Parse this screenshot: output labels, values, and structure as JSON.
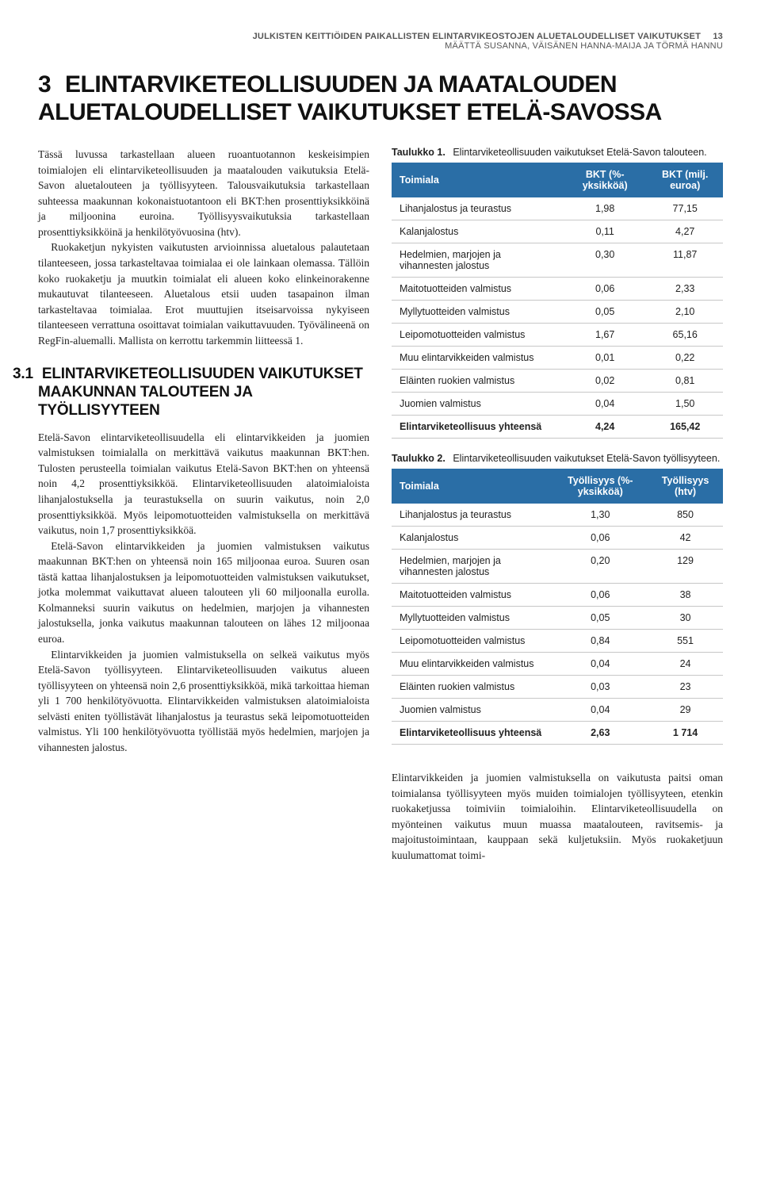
{
  "header": {
    "line1": "JULKISTEN KEITTIÖIDEN PAIKALLISTEN ELINTARVIKEOSTOJEN ALUETALOUDELLISET VAIKUTUKSET",
    "line2": "MÄÄTTÄ SUSANNA, VÄISÄNEN HANNA-MAIJA JA TÖRMÄ HANNU",
    "page": "13"
  },
  "chapter": {
    "num": "3",
    "title": "ELINTARVIKETEOLLISUUDEN JA MAATALOUDEN ALUETALOUDELLISET VAIKUTUKSET ETELÄ-SAVOSSA"
  },
  "left": {
    "p1": "Tässä luvussa tarkastellaan alueen ruoantuotannon keskeisimpien toimialojen eli elintarviketeollisuuden ja maatalouden vaikutuksia Etelä-Savon aluetalouteen ja työllisyyteen. Talousvaikutuksia tarkastellaan suhteessa maakunnan kokonaistuotantoon eli BKT:hen prosenttiyksikköinä ja miljoonina euroina. Työllisyysvaikutuksia tarkastellaan prosenttiyksikköinä ja henkilötyövuosina (htv).",
    "p2": "Ruokaketjun nykyisten vaikutusten arvioinnissa aluetalous palautetaan tilanteeseen, jossa tarkasteltavaa toimialaa ei ole lainkaan olemassa. Tällöin koko ruokaketju ja muutkin toimialat eli alueen koko elinkeinorakenne mukautuvat tilanteeseen. Aluetalous etsii uuden tasapainon ilman tarkasteltavaa toimialaa. Erot muuttujien itseisarvoissa nykyiseen tilanteeseen verrattuna osoittavat toimialan vaikuttavuuden. Työvälineenä on RegFin-aluemalli. Mallista on kerrottu tarkemmin liitteessä 1.",
    "section": {
      "num": "3.1",
      "title": "ELINTARVIKETEOLLISUUDEN VAIKUTUKSET MAAKUNNAN TALOUTEEN JA TYÖLLISYYTEEN"
    },
    "p3": "Etelä-Savon elintarviketeollisuudella eli elintarvikkeiden ja juomien valmistuksen toimialalla on merkittävä vaikutus maakunnan BKT:hen. Tulosten perusteella toimialan vaikutus Etelä-Savon BKT:hen on yhteensä noin 4,2 prosenttiyksikköä. Elintarviketeollisuuden alatoimialoista lihanjalostuksella ja teurastuksella on suurin vaikutus, noin 2,0 prosenttiyksikköä. Myös leipomotuotteiden valmistuksella on merkittävä vaikutus, noin 1,7 prosenttiyksikköä.",
    "p4": "Etelä-Savon elintarvikkeiden ja juomien valmistuksen vaikutus maakunnan BKT:hen on yhteensä noin 165 miljoonaa euroa. Suuren osan tästä kattaa lihanjalostuksen ja leipomotuotteiden valmistuksen vaikutukset, jotka molemmat vaikuttavat alueen talouteen yli 60 miljoonalla eurolla. Kolmanneksi suurin vaikutus on hedelmien, marjojen ja vihannesten jalostuksella, jonka vaikutus maakunnan talouteen on lähes 12 miljoonaa euroa.",
    "p5": "Elintarvikkeiden ja juomien valmistuksella on selkeä vaikutus myös Etelä-Savon työllisyyteen. Elintarviketeollisuuden vaikutus alueen työllisyyteen on yhteensä noin 2,6 prosenttiyksikköä, mikä tarkoittaa hieman yli 1 700 henkilötyövuotta. Elintarvikkeiden valmistuksen alatoimialoista selvästi eniten työllistävät lihanjalostus ja teurastus sekä leipomotuotteiden valmistus. Yli 100 henkilötyövuotta työllistää myös hedelmien, marjojen ja vihannesten jalostus."
  },
  "table1": {
    "caption_label": "Taulukko 1.",
    "caption_text": "Elintarviketeollisuuden vaikutukset Etelä-Savon talouteen.",
    "col0": "Toimiala",
    "col1": "BKT (%-yksikköä)",
    "col2": "BKT (milj. euroa)",
    "rows": [
      {
        "label": "Lihanjalostus ja teurastus",
        "v1": "1,98",
        "v2": "77,15"
      },
      {
        "label": "Kalanjalostus",
        "v1": "0,11",
        "v2": "4,27"
      },
      {
        "label": "Hedelmien, marjojen ja vihannesten jalostus",
        "v1": "0,30",
        "v2": "11,87"
      },
      {
        "label": "Maitotuotteiden valmistus",
        "v1": "0,06",
        "v2": "2,33"
      },
      {
        "label": "Myllytuotteiden valmistus",
        "v1": "0,05",
        "v2": "2,10"
      },
      {
        "label": "Leipomotuotteiden valmistus",
        "v1": "1,67",
        "v2": "65,16"
      },
      {
        "label": "Muu elintarvikkeiden valmistus",
        "v1": "0,01",
        "v2": "0,22"
      },
      {
        "label": "Eläinten ruokien valmistus",
        "v1": "0,02",
        "v2": "0,81"
      },
      {
        "label": "Juomien valmistus",
        "v1": "0,04",
        "v2": "1,50"
      }
    ],
    "total": {
      "label": "Elintarviketeollisuus yhteensä",
      "v1": "4,24",
      "v2": "165,42"
    }
  },
  "table2": {
    "caption_label": "Taulukko 2.",
    "caption_text": "Elintarviketeollisuuden vaikutukset Etelä-Savon työllisyyteen.",
    "col0": "Toimiala",
    "col1": "Työllisyys (%-yksikköä)",
    "col2": "Työllisyys (htv)",
    "rows": [
      {
        "label": "Lihanjalostus ja teurastus",
        "v1": "1,30",
        "v2": "850"
      },
      {
        "label": "Kalanjalostus",
        "v1": "0,06",
        "v2": "42"
      },
      {
        "label": "Hedelmien, marjojen ja vihannesten jalostus",
        "v1": "0,20",
        "v2": "129"
      },
      {
        "label": "Maitotuotteiden valmistus",
        "v1": "0,06",
        "v2": "38"
      },
      {
        "label": "Myllytuotteiden valmistus",
        "v1": "0,05",
        "v2": "30"
      },
      {
        "label": "Leipomotuotteiden valmistus",
        "v1": "0,84",
        "v2": "551"
      },
      {
        "label": "Muu elintarvikkeiden valmistus",
        "v1": "0,04",
        "v2": "24"
      },
      {
        "label": "Eläinten ruokien valmistus",
        "v1": "0,03",
        "v2": "23"
      },
      {
        "label": "Juomien valmistus",
        "v1": "0,04",
        "v2": "29"
      }
    ],
    "total": {
      "label": "Elintarviketeollisuus yhteensä",
      "v1": "2,63",
      "v2": "1 714"
    }
  },
  "right_para": "Elintarvikkeiden ja juomien valmistuksella on vaikutusta paitsi oman toimialansa työllisyyteen myös muiden toimialojen työllisyyteen, etenkin ruokaketjussa toimiviin toimialoihin. Elintarviketeollisuudella on myönteinen vaikutus muun muassa maatalouteen, ravitsemis- ja majoitustoimintaan, kauppaan sekä kuljetuksiin. Myös ruokaketjuun kuulumattomat toimi-"
}
